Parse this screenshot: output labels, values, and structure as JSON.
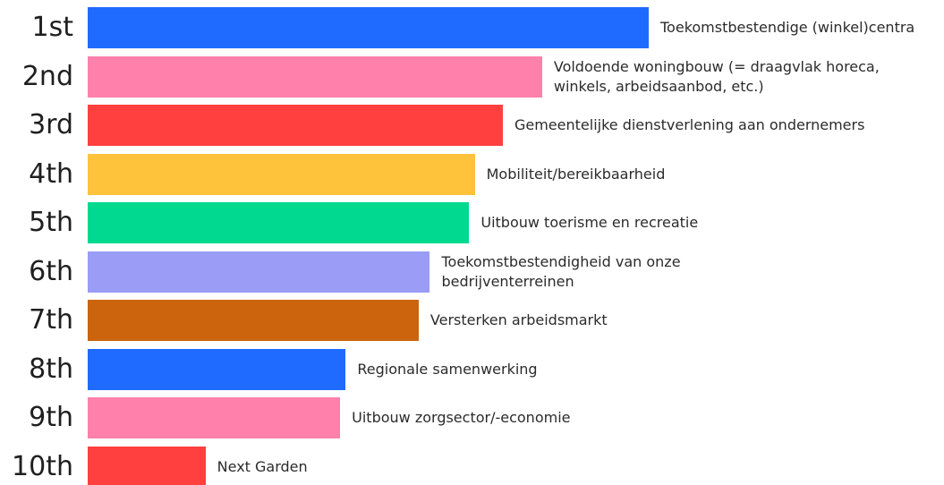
{
  "chart_data": {
    "type": "bar",
    "orientation": "horizontal",
    "ranks": [
      "1st",
      "2nd",
      "3rd",
      "4th",
      "5th",
      "6th",
      "7th",
      "8th",
      "9th",
      "10th"
    ],
    "categories": [
      "Toekomstbestendige (winkel)centra",
      "Voldoende woningbouw (= draagvlak horeca, winkels, arbeidsaanbod, etc.)",
      "Gemeentelijke dienstverlening aan ondernemers",
      "Mobiliteit/bereikbaarheid",
      "Uitbouw toerisme en recreatie",
      "Toekomstbestendigheid van onze bedrijventerreinen",
      "Versterken arbeidsmarkt",
      "Regionale samenwerking",
      "Uitbouw zorgsector/-economie",
      "Next Garden"
    ],
    "values": [
      100,
      81,
      74,
      69,
      68,
      61,
      59,
      46,
      45,
      21
    ],
    "colors": [
      "#1f6bff",
      "#ff80aa",
      "#ff403f",
      "#ffc23b",
      "#00d98f",
      "#9a9cf6",
      "#cc640e",
      "#1f6bff",
      "#ff80aa",
      "#ff403f"
    ],
    "xlim": [
      0,
      100
    ]
  }
}
